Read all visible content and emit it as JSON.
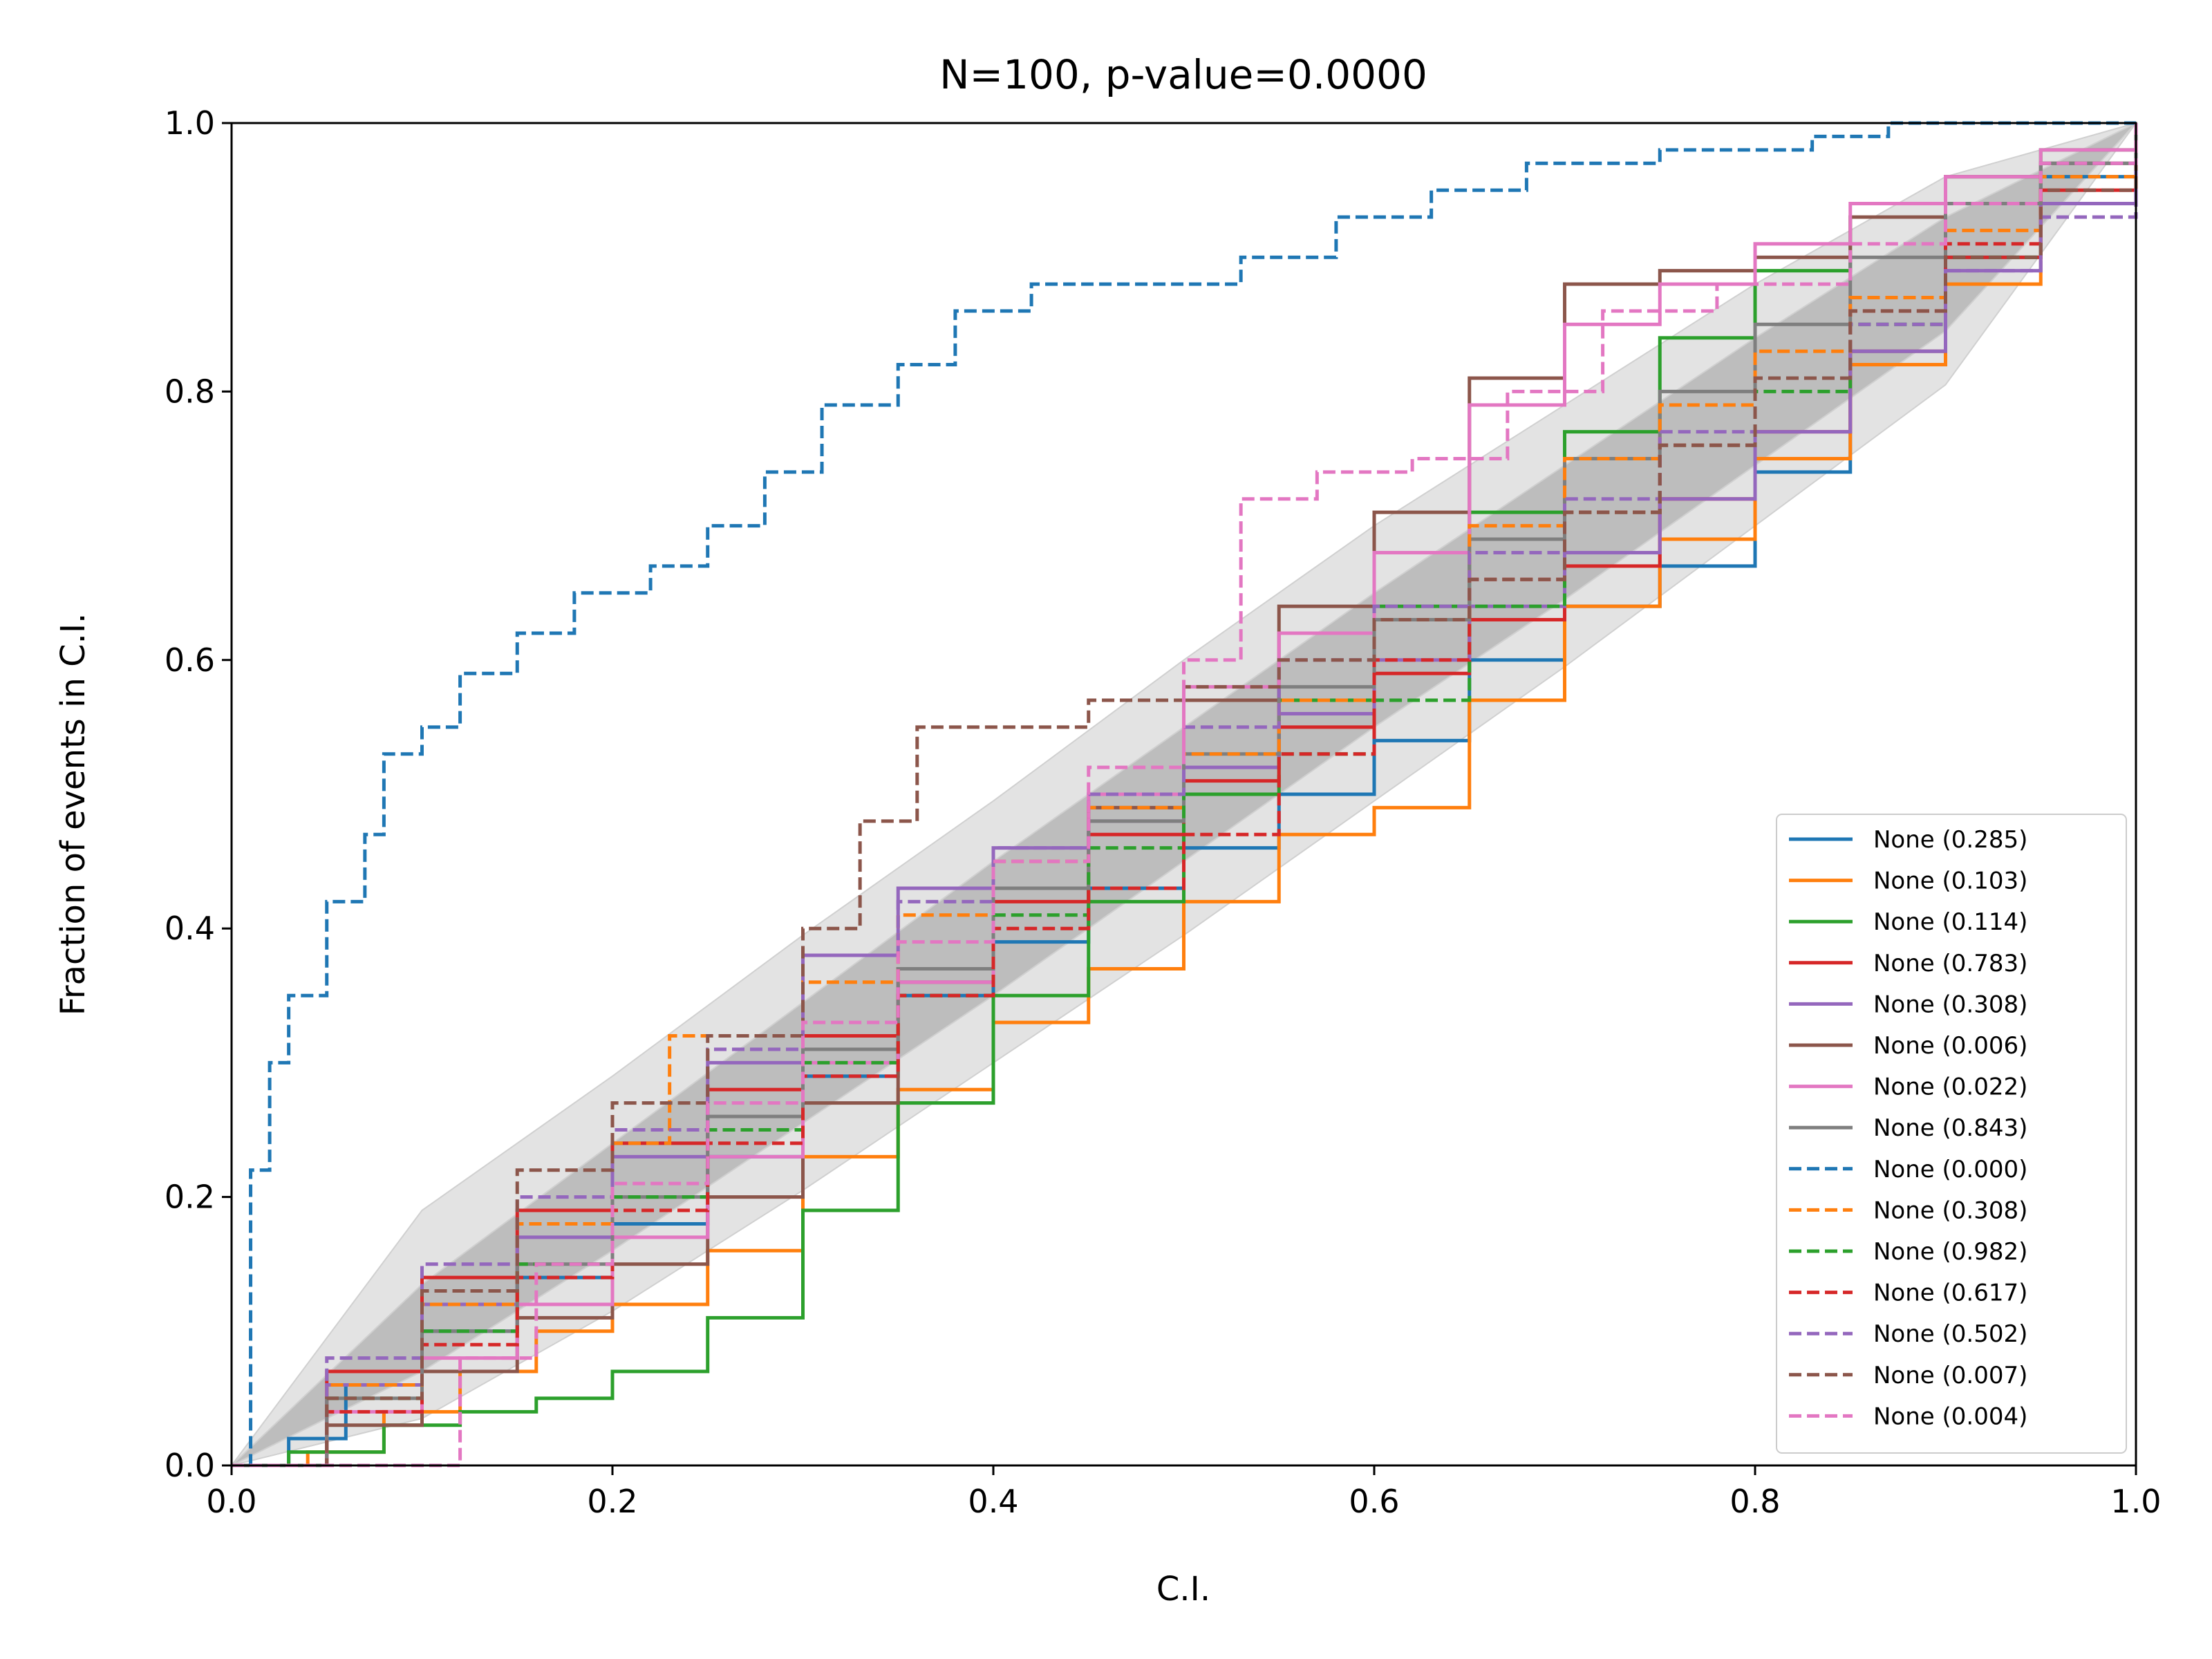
{
  "chart_data": {
    "type": "line",
    "title": "N=100, p-value=0.0000",
    "xlabel": "C.I.",
    "ylabel": "Fraction of events in C.I.",
    "xlim": [
      0,
      1
    ],
    "ylim": [
      0,
      1
    ],
    "x_ticks": [
      "0.0",
      "0.2",
      "0.4",
      "0.6",
      "0.8",
      "1.0"
    ],
    "y_ticks": [
      "0.0",
      "0.2",
      "0.4",
      "0.6",
      "0.8",
      "1.0"
    ],
    "grid": false,
    "legend_position": "lower-right",
    "confidence_bands": [
      {
        "level": "inner",
        "color": "#bdbdbd",
        "x": [
          0,
          0.1,
          0.2,
          0.3,
          0.4,
          0.5,
          0.6,
          0.7,
          0.8,
          0.9,
          1.0
        ],
        "lower": [
          0,
          0.07,
          0.16,
          0.255,
          0.35,
          0.45,
          0.55,
          0.645,
          0.745,
          0.845,
          1.0
        ],
        "upper": [
          0,
          0.135,
          0.24,
          0.345,
          0.45,
          0.55,
          0.65,
          0.745,
          0.84,
          0.93,
          1.0
        ]
      },
      {
        "level": "outer",
        "color": "#e3e3e3",
        "x": [
          0,
          0.1,
          0.2,
          0.3,
          0.4,
          0.5,
          0.6,
          0.7,
          0.8,
          0.9,
          1.0
        ],
        "lower": [
          0,
          0.035,
          0.115,
          0.205,
          0.3,
          0.395,
          0.495,
          0.595,
          0.7,
          0.805,
          1.0
        ],
        "upper": [
          0,
          0.19,
          0.29,
          0.395,
          0.495,
          0.6,
          0.7,
          0.79,
          0.88,
          0.96,
          1.0
        ]
      }
    ],
    "series": [
      {
        "name": "None (0.285)",
        "color": "#1f77b4",
        "dash": false,
        "x": [
          0,
          0.03,
          0.06,
          0.1,
          0.15,
          0.2,
          0.25,
          0.3,
          0.35,
          0.4,
          0.45,
          0.5,
          0.55,
          0.6,
          0.65,
          0.7,
          0.75,
          0.8,
          0.85,
          0.9,
          0.95,
          1.0
        ],
        "y": [
          0,
          0.02,
          0.06,
          0.1,
          0.14,
          0.18,
          0.23,
          0.29,
          0.35,
          0.39,
          0.43,
          0.46,
          0.5,
          0.54,
          0.6,
          0.64,
          0.67,
          0.74,
          0.83,
          0.9,
          0.96,
          1.0
        ]
      },
      {
        "name": "None (0.103)",
        "color": "#ff7f0e",
        "dash": false,
        "x": [
          0,
          0.04,
          0.08,
          0.12,
          0.16,
          0.2,
          0.25,
          0.3,
          0.35,
          0.4,
          0.45,
          0.5,
          0.55,
          0.6,
          0.65,
          0.7,
          0.75,
          0.8,
          0.85,
          0.9,
          0.95,
          1.0
        ],
        "y": [
          0,
          0.01,
          0.04,
          0.07,
          0.1,
          0.12,
          0.16,
          0.23,
          0.28,
          0.33,
          0.37,
          0.42,
          0.47,
          0.49,
          0.57,
          0.64,
          0.69,
          0.75,
          0.82,
          0.88,
          0.94,
          1.0
        ]
      },
      {
        "name": "None (0.114)",
        "color": "#2ca02c",
        "dash": false,
        "x": [
          0,
          0.03,
          0.08,
          0.12,
          0.16,
          0.2,
          0.25,
          0.3,
          0.35,
          0.4,
          0.45,
          0.5,
          0.55,
          0.6,
          0.65,
          0.7,
          0.75,
          0.8,
          0.85,
          0.9,
          0.95,
          1.0
        ],
        "y": [
          0,
          0.01,
          0.03,
          0.04,
          0.05,
          0.07,
          0.11,
          0.19,
          0.27,
          0.35,
          0.42,
          0.5,
          0.57,
          0.64,
          0.71,
          0.77,
          0.84,
          0.89,
          0.93,
          0.96,
          0.98,
          1.0
        ]
      },
      {
        "name": "None (0.783)",
        "color": "#d62728",
        "dash": false,
        "x": [
          0,
          0.05,
          0.1,
          0.15,
          0.2,
          0.25,
          0.3,
          0.35,
          0.4,
          0.45,
          0.5,
          0.55,
          0.6,
          0.65,
          0.7,
          0.75,
          0.8,
          0.85,
          0.9,
          0.95,
          1.0
        ],
        "y": [
          0,
          0.07,
          0.14,
          0.19,
          0.24,
          0.28,
          0.32,
          0.37,
          0.42,
          0.47,
          0.51,
          0.55,
          0.59,
          0.63,
          0.67,
          0.72,
          0.77,
          0.83,
          0.9,
          0.95,
          1.0
        ]
      },
      {
        "name": "None (0.308)",
        "color": "#9467bd",
        "dash": false,
        "x": [
          0,
          0.05,
          0.1,
          0.15,
          0.2,
          0.25,
          0.3,
          0.35,
          0.4,
          0.45,
          0.5,
          0.55,
          0.6,
          0.65,
          0.7,
          0.75,
          0.8,
          0.85,
          0.9,
          0.95,
          1.0
        ],
        "y": [
          0,
          0.06,
          0.12,
          0.17,
          0.23,
          0.3,
          0.38,
          0.43,
          0.46,
          0.48,
          0.52,
          0.56,
          0.6,
          0.64,
          0.68,
          0.72,
          0.77,
          0.83,
          0.89,
          0.94,
          1.0
        ]
      },
      {
        "name": "None (0.006)",
        "color": "#8c564b",
        "dash": false,
        "x": [
          0,
          0.05,
          0.1,
          0.15,
          0.2,
          0.25,
          0.3,
          0.35,
          0.4,
          0.45,
          0.5,
          0.55,
          0.6,
          0.65,
          0.7,
          0.75,
          0.8,
          0.85,
          0.9,
          0.95,
          1.0
        ],
        "y": [
          0,
          0.03,
          0.07,
          0.11,
          0.15,
          0.2,
          0.27,
          0.36,
          0.43,
          0.49,
          0.57,
          0.64,
          0.71,
          0.81,
          0.88,
          0.89,
          0.9,
          0.93,
          0.96,
          0.97,
          1.0
        ]
      },
      {
        "name": "None (0.022)",
        "color": "#e377c2",
        "dash": false,
        "x": [
          0,
          0.05,
          0.1,
          0.15,
          0.2,
          0.25,
          0.3,
          0.35,
          0.4,
          0.45,
          0.5,
          0.55,
          0.6,
          0.65,
          0.7,
          0.75,
          0.8,
          0.85,
          0.9,
          0.95,
          1.0
        ],
        "y": [
          0,
          0.04,
          0.08,
          0.12,
          0.17,
          0.23,
          0.3,
          0.36,
          0.43,
          0.5,
          0.58,
          0.62,
          0.68,
          0.79,
          0.85,
          0.88,
          0.91,
          0.94,
          0.96,
          0.98,
          1.0
        ]
      },
      {
        "name": "None (0.843)",
        "color": "#7f7f7f",
        "dash": false,
        "x": [
          0,
          0.05,
          0.1,
          0.15,
          0.2,
          0.25,
          0.3,
          0.35,
          0.4,
          0.45,
          0.5,
          0.55,
          0.6,
          0.65,
          0.7,
          0.75,
          0.8,
          0.85,
          0.9,
          0.95,
          1.0
        ],
        "y": [
          0,
          0.05,
          0.1,
          0.15,
          0.2,
          0.26,
          0.31,
          0.37,
          0.43,
          0.48,
          0.53,
          0.58,
          0.63,
          0.69,
          0.75,
          0.8,
          0.85,
          0.9,
          0.94,
          0.97,
          1.0
        ]
      },
      {
        "name": "None (0.000)",
        "color": "#1f77b4",
        "dash": true,
        "x": [
          0,
          0.01,
          0.02,
          0.03,
          0.05,
          0.07,
          0.08,
          0.1,
          0.12,
          0.15,
          0.18,
          0.22,
          0.25,
          0.28,
          0.31,
          0.35,
          0.38,
          0.42,
          0.47,
          0.53,
          0.58,
          0.63,
          0.68,
          0.75,
          0.83,
          0.87,
          1.0
        ],
        "y": [
          0,
          0.22,
          0.3,
          0.35,
          0.42,
          0.47,
          0.53,
          0.55,
          0.59,
          0.62,
          0.65,
          0.67,
          0.7,
          0.74,
          0.79,
          0.82,
          0.86,
          0.88,
          0.88,
          0.9,
          0.93,
          0.95,
          0.97,
          0.98,
          0.99,
          1.0,
          1.0
        ]
      },
      {
        "name": "None (0.308)",
        "color": "#ff7f0e",
        "dash": true,
        "x": [
          0,
          0.05,
          0.1,
          0.15,
          0.2,
          0.23,
          0.3,
          0.35,
          0.4,
          0.45,
          0.5,
          0.55,
          0.6,
          0.65,
          0.7,
          0.75,
          0.8,
          0.85,
          0.9,
          0.95,
          1.0
        ],
        "y": [
          0,
          0.06,
          0.12,
          0.18,
          0.24,
          0.32,
          0.36,
          0.41,
          0.45,
          0.49,
          0.53,
          0.57,
          0.63,
          0.7,
          0.75,
          0.79,
          0.83,
          0.87,
          0.92,
          0.96,
          1.0
        ]
      },
      {
        "name": "None (0.982)",
        "color": "#2ca02c",
        "dash": true,
        "x": [
          0,
          0.05,
          0.1,
          0.15,
          0.2,
          0.25,
          0.3,
          0.35,
          0.4,
          0.45,
          0.5,
          0.55,
          0.6,
          0.65,
          0.7,
          0.75,
          0.8,
          0.85,
          0.9,
          0.95,
          1.0
        ],
        "y": [
          0,
          0.05,
          0.1,
          0.15,
          0.2,
          0.25,
          0.3,
          0.35,
          0.41,
          0.46,
          0.5,
          0.53,
          0.57,
          0.64,
          0.71,
          0.76,
          0.8,
          0.85,
          0.9,
          0.93,
          1.0
        ]
      },
      {
        "name": "None (0.617)",
        "color": "#d62728",
        "dash": true,
        "x": [
          0,
          0.05,
          0.1,
          0.15,
          0.2,
          0.25,
          0.3,
          0.35,
          0.4,
          0.45,
          0.5,
          0.55,
          0.6,
          0.65,
          0.7,
          0.75,
          0.8,
          0.85,
          0.9,
          0.95,
          1.0
        ],
        "y": [
          0,
          0.04,
          0.09,
          0.14,
          0.19,
          0.24,
          0.29,
          0.35,
          0.4,
          0.43,
          0.47,
          0.53,
          0.6,
          0.66,
          0.71,
          0.76,
          0.81,
          0.86,
          0.91,
          0.95,
          1.0
        ]
      },
      {
        "name": "None (0.502)",
        "color": "#9467bd",
        "dash": true,
        "x": [
          0,
          0.05,
          0.1,
          0.15,
          0.2,
          0.25,
          0.3,
          0.35,
          0.4,
          0.45,
          0.5,
          0.55,
          0.6,
          0.65,
          0.7,
          0.75,
          0.8,
          0.85,
          0.9,
          0.95,
          1.0
        ],
        "y": [
          0,
          0.08,
          0.15,
          0.2,
          0.25,
          0.31,
          0.38,
          0.42,
          0.46,
          0.5,
          0.55,
          0.6,
          0.64,
          0.68,
          0.72,
          0.77,
          0.81,
          0.85,
          0.89,
          0.93,
          1.0
        ]
      },
      {
        "name": "None (0.007)",
        "color": "#8c564b",
        "dash": true,
        "x": [
          0,
          0.05,
          0.1,
          0.15,
          0.2,
          0.25,
          0.3,
          0.33,
          0.36,
          0.4,
          0.45,
          0.5,
          0.55,
          0.6,
          0.65,
          0.7,
          0.75,
          0.8,
          0.85,
          0.9,
          0.95,
          1.0
        ],
        "y": [
          0,
          0.05,
          0.13,
          0.22,
          0.27,
          0.32,
          0.4,
          0.48,
          0.55,
          0.55,
          0.57,
          0.58,
          0.6,
          0.63,
          0.66,
          0.71,
          0.76,
          0.81,
          0.86,
          0.9,
          0.95,
          1.0
        ]
      },
      {
        "name": "None (0.004)",
        "color": "#e377c2",
        "dash": true,
        "x": [
          0,
          0.05,
          0.09,
          0.12,
          0.16,
          0.2,
          0.25,
          0.3,
          0.35,
          0.4,
          0.45,
          0.5,
          0.53,
          0.57,
          0.62,
          0.67,
          0.72,
          0.78,
          0.85,
          0.9,
          0.95,
          1.0
        ],
        "y": [
          0,
          0.0,
          0.0,
          0.08,
          0.15,
          0.21,
          0.27,
          0.33,
          0.39,
          0.45,
          0.52,
          0.6,
          0.72,
          0.74,
          0.75,
          0.8,
          0.86,
          0.88,
          0.91,
          0.94,
          0.97,
          1.0
        ]
      }
    ]
  }
}
